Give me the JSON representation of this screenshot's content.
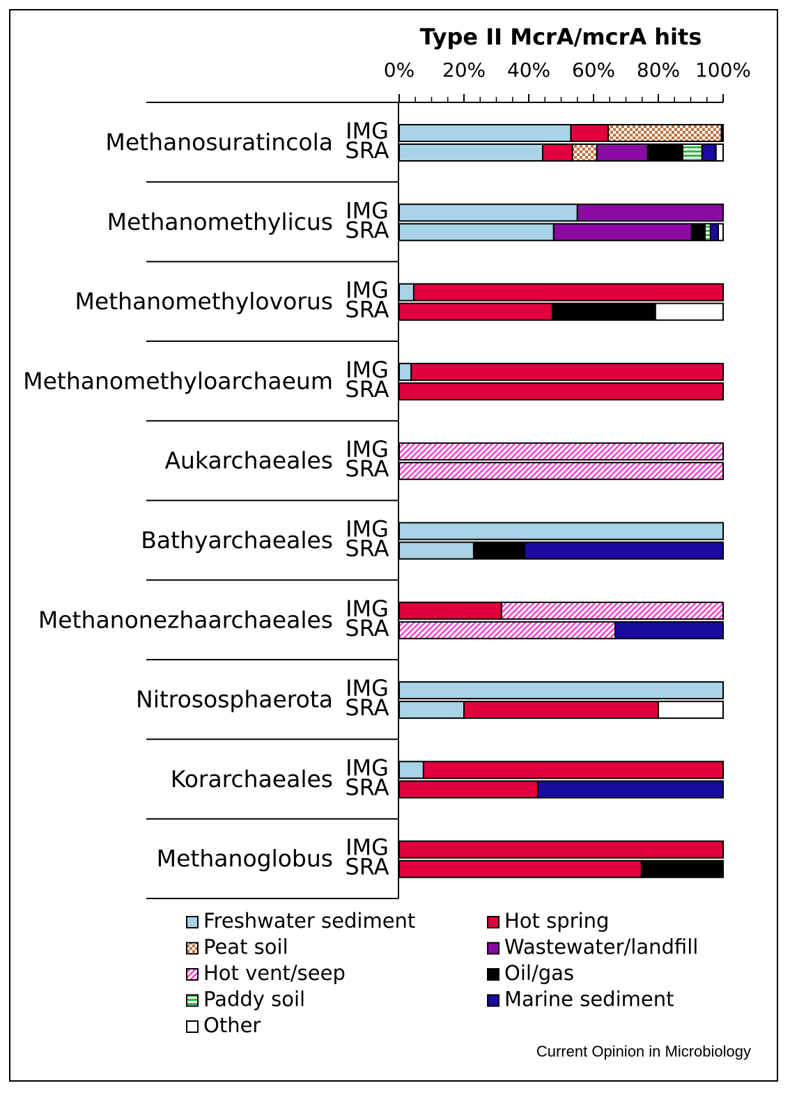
{
  "chart_data": {
    "type": "stacked-barh",
    "title": "Type II McrA/mcrA hits",
    "groups": [
      "Methanosuratincola",
      "Methanomethylicus",
      "Methanomethylovorus",
      "Methanomethyloarchaeum",
      "Aukarchaeales",
      "Bathyarchaeales",
      "Methanonezhaarchaeales",
      "Nitrososphaerota",
      "Korarchaeales",
      "Methanoglobus"
    ],
    "categories": [
      "IMG",
      "SRA",
      "IMG",
      "SRA",
      "IMG",
      "SRA",
      "IMG",
      "SRA",
      "IMG",
      "SRA",
      "IMG",
      "SRA",
      "IMG",
      "SRA",
      "IMG",
      "SRA",
      "IMG",
      "SRA",
      "IMG",
      "SRA"
    ],
    "xlim": [
      0,
      100
    ],
    "xticks": [
      {
        "value": 0,
        "label": "0%"
      },
      {
        "value": 20,
        "label": "20%"
      },
      {
        "value": 40,
        "label": "40%"
      },
      {
        "value": 60,
        "label": "60%"
      },
      {
        "value": 80,
        "label": "80%"
      },
      {
        "value": 100,
        "label": "100%"
      }
    ],
    "minor_tick_step": 5,
    "series": [
      {
        "name": "Freshwater sediment",
        "color": "#a9d3e6",
        "values": [
          53,
          44.3,
          55,
          47.7,
          4.5,
          0,
          3.7,
          0,
          0,
          0,
          100,
          23,
          0,
          0,
          100,
          20,
          7.5,
          0,
          0,
          0
        ]
      },
      {
        "name": "Hot spring",
        "color": "#e1003d",
        "values": [
          11.5,
          9.2,
          0,
          0,
          95.5,
          47.3,
          96.3,
          100,
          0,
          0,
          0,
          0,
          31.6,
          0,
          0,
          60,
          92.5,
          42.8,
          100,
          74.8
        ]
      },
      {
        "name": "Peat soil",
        "color": "#c2703c",
        "pattern": "checker",
        "values": [
          35,
          7.5,
          0,
          0,
          0,
          0,
          0,
          0,
          0,
          0,
          0,
          0,
          0,
          0,
          0,
          0,
          0,
          0,
          0,
          0
        ]
      },
      {
        "name": "Wastewater/landfill",
        "color": "#8a0aa3",
        "values": [
          0,
          15.7,
          45,
          42.6,
          0,
          0,
          0,
          0,
          0,
          0,
          0,
          0,
          0,
          0,
          0,
          0,
          0,
          0,
          0,
          0
        ]
      },
      {
        "name": "Hot vent/seep",
        "color": "#ff3fcc",
        "pattern": "diagonal",
        "values": [
          0,
          0,
          0,
          0,
          0,
          0,
          0,
          0,
          100,
          100,
          0,
          0,
          68.4,
          66.7,
          0,
          0,
          0,
          0,
          0,
          0
        ]
      },
      {
        "name": "Oil/gas",
        "color": "#000000",
        "values": [
          0.5,
          10.8,
          0,
          4.1,
          0,
          31.8,
          0,
          0,
          0,
          0,
          0,
          15.7,
          0,
          0,
          0,
          0,
          0,
          0,
          0,
          25.2
        ]
      },
      {
        "name": "Paddy soil",
        "color": "#2fb845",
        "pattern": "horizontal",
        "values": [
          0,
          6,
          0,
          1.7,
          0,
          0,
          0,
          0,
          0,
          0,
          0,
          0,
          0,
          0,
          0,
          0,
          0,
          0,
          0,
          0
        ]
      },
      {
        "name": "Marine sediment",
        "color": "#1a0a9e",
        "values": [
          0,
          4.3,
          0,
          2.4,
          0,
          0,
          0,
          0,
          0,
          0,
          0,
          61.3,
          0,
          33.3,
          0,
          0,
          0,
          57.2,
          0,
          0
        ]
      },
      {
        "name": "Other",
        "color": "#ffffff",
        "values": [
          0,
          2.2,
          0,
          1.5,
          0,
          20.9,
          0,
          0,
          0,
          0,
          0,
          0,
          0,
          0,
          0,
          20,
          0,
          0,
          0,
          0
        ]
      }
    ],
    "source": "Current Opinion in Microbiology"
  }
}
